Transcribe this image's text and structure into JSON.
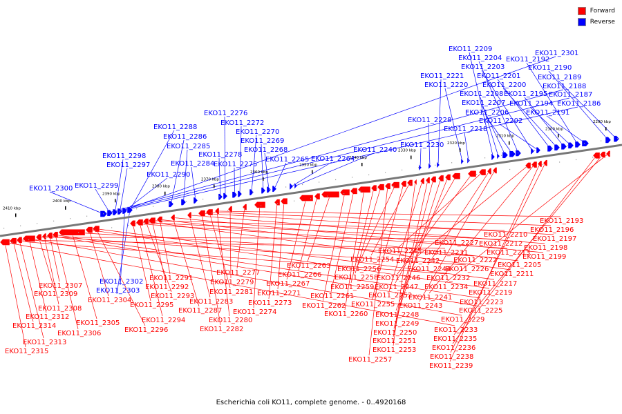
{
  "legend": [
    {
      "label": "Forward",
      "color": "#ff0000"
    },
    {
      "label": "Reverse",
      "color": "#0000ff"
    }
  ],
  "caption": "Escherichia coli KO11, complete genome. - 0..4920168",
  "scale_labels": [
    "2410 kbp",
    "2400 kbp",
    "2390 kbp",
    "2380 kbp",
    "2370 kbp",
    "2360 kbp",
    "2350 kbp",
    "2340 kbp",
    "2330 kbp",
    "2320 kbp",
    "2310 kbp",
    "2300 kbp",
    "2290 kbp"
  ],
  "reverse_genes": [
    "EKO11_2300",
    "EKO11_2299",
    "EKO11_2298",
    "EKO11_2297",
    "EKO11_2290",
    "EKO11_2288",
    "EKO11_2286",
    "EKO11_2285",
    "EKO11_2284",
    "EKO11_2278",
    "EKO11_2276",
    "EKO11_2275",
    "EKO11_2272",
    "EKO11_2270",
    "EKO11_2269",
    "EKO11_2268",
    "EKO11_2265",
    "EKO11_2264",
    "EKO11_2240",
    "EKO11_2230",
    "EKO11_2228",
    "EKO11_2221",
    "EKO11_2220",
    "EKO11_2218",
    "EKO11_2209",
    "EKO11_2208",
    "EKO11_2207",
    "EKO11_2206",
    "EKO11_2204",
    "EKO11_2203",
    "EKO11_2202",
    "EKO11_2201",
    "EKO11_2200",
    "EKO11_2195",
    "EKO11_2194",
    "EKO11_2192",
    "EKO11_2191",
    "EKO11_2190",
    "EKO11_2189",
    "EKO11_2188",
    "EKO11_2187",
    "EKO11_2186",
    "EKO11_2301",
    "EKO11_2302",
    "EKO11_2303"
  ],
  "forward_genes": [
    "EKO11_2315",
    "EKO11_2314",
    "EKO11_2313",
    "EKO11_2312",
    "EKO11_2309",
    "EKO11_2308",
    "EKO11_2307",
    "EKO11_2306",
    "EKO11_2305",
    "EKO11_2304",
    "EKO11_2296",
    "EKO11_2295",
    "EKO11_2294",
    "EKO11_2293",
    "EKO11_2292",
    "EKO11_2291",
    "EKO11_2287",
    "EKO11_2283",
    "EKO11_2282",
    "EKO11_2281",
    "EKO11_2280",
    "EKO11_2279",
    "EKO11_2277",
    "EKO11_2274",
    "EKO11_2273",
    "EKO11_2271",
    "EKO11_2267",
    "EKO11_2266",
    "EKO11_2263",
    "EKO11_2262",
    "EKO11_2261",
    "EKO11_2260",
    "EKO11_2259",
    "EKO11_2258",
    "EKO11_2257",
    "EKO11_2256",
    "EKO11_2255",
    "EKO11_2254",
    "EKO11_2253",
    "EKO11_2252",
    "EKO11_2251",
    "EKO11_2250",
    "EKO11_2249",
    "EKO11_2248",
    "EKO11_2247",
    "EKO11_2246",
    "EKO11_2245",
    "EKO11_2244",
    "EKO11_2243",
    "EKO11_2242",
    "EKO11_2241",
    "EKO11_2239",
    "EKO11_2238",
    "EKO11_2236",
    "EKO11_2235",
    "EKO11_2234",
    "EKO11_2233",
    "EKO11_2232",
    "EKO11_2231",
    "EKO11_2229",
    "EKO11_2227",
    "EKO11_2226",
    "EKO11_2225",
    "EKO11_2223",
    "EKO11_2222",
    "EKO11_2219",
    "EKO11_2217",
    "EKO11_2213",
    "EKO11_2212",
    "EKO11_2211",
    "EKO11_2210",
    "EKO11_2205",
    "EKO11_2199",
    "EKO11_2198",
    "EKO11_2197",
    "EKO11_2196",
    "EKO11_2193"
  ]
}
